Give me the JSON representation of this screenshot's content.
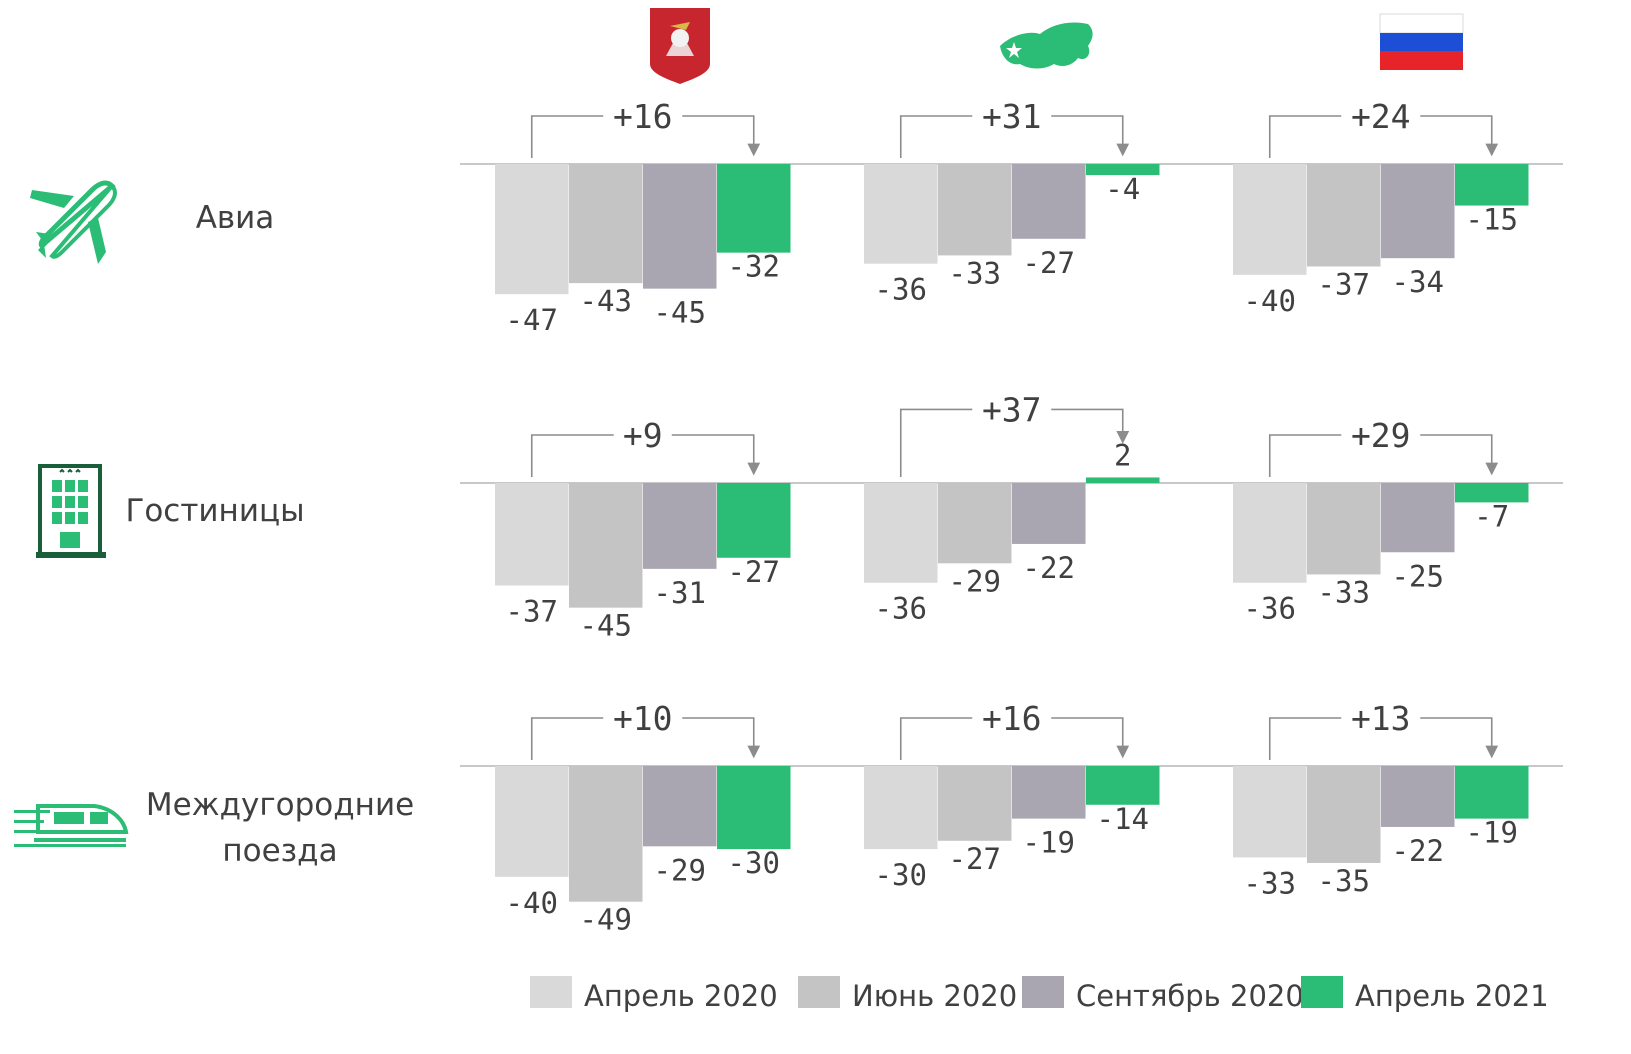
{
  "chart_data": {
    "type": "bar",
    "series_names": [
      "Апрель 2020",
      "Июнь 2020",
      "Сентябрь 2020",
      "Апрель 2021"
    ],
    "colors": [
      "#d9d9d9",
      "#c4c4c4",
      "#aaa6b1",
      "#2bbd75"
    ],
    "regions": [
      {
        "icon": "moscow-coat-of-arms-icon"
      },
      {
        "icon": "russia-map-icon"
      },
      {
        "icon": "russia-flag-icon"
      }
    ],
    "rows": [
      {
        "label": [
          "Авиа"
        ],
        "icon": "airplane-icon",
        "groups": [
          {
            "values": [
              -47,
              -43,
              -45,
              -32
            ],
            "labels": [
              "-47",
              "-43",
              "-45",
              "-32"
            ],
            "change": "+16"
          },
          {
            "values": [
              -36,
              -33,
              -27,
              -4
            ],
            "labels": [
              "-36",
              "-33",
              "-27",
              "-4"
            ],
            "change": "+31"
          },
          {
            "values": [
              -40,
              -37,
              -34,
              -15
            ],
            "labels": [
              "-40",
              "-37",
              "-34",
              "-15"
            ],
            "change": "+24"
          }
        ]
      },
      {
        "label": [
          "Гостиницы"
        ],
        "icon": "hotel-icon",
        "groups": [
          {
            "values": [
              -37,
              -45,
              -31,
              -27
            ],
            "labels": [
              "-37",
              "-45",
              "-31",
              "-27"
            ],
            "change": "+9"
          },
          {
            "values": [
              -36,
              -29,
              -22,
              2
            ],
            "labels": [
              "-36",
              "-29",
              "-22",
              "2"
            ],
            "change": "+37"
          },
          {
            "values": [
              -36,
              -33,
              -25,
              -7
            ],
            "labels": [
              "-36",
              "-33",
              "-25",
              "-7"
            ],
            "change": "+29"
          }
        ]
      },
      {
        "label": [
          "Междугородние",
          "поезда"
        ],
        "icon": "train-icon",
        "groups": [
          {
            "values": [
              -40,
              -49,
              -29,
              -30
            ],
            "labels": [
              "-40",
              "-49",
              "-29",
              "-30"
            ],
            "change": "+10"
          },
          {
            "values": [
              -30,
              -27,
              -19,
              -14
            ],
            "labels": [
              "-30",
              "-27",
              "-19",
              "-14"
            ],
            "change": "+16"
          },
          {
            "values": [
              -33,
              -35,
              -22,
              -19
            ],
            "labels": [
              "-33",
              "-35",
              "-22",
              "-19"
            ],
            "change": "+13"
          }
        ]
      }
    ]
  }
}
